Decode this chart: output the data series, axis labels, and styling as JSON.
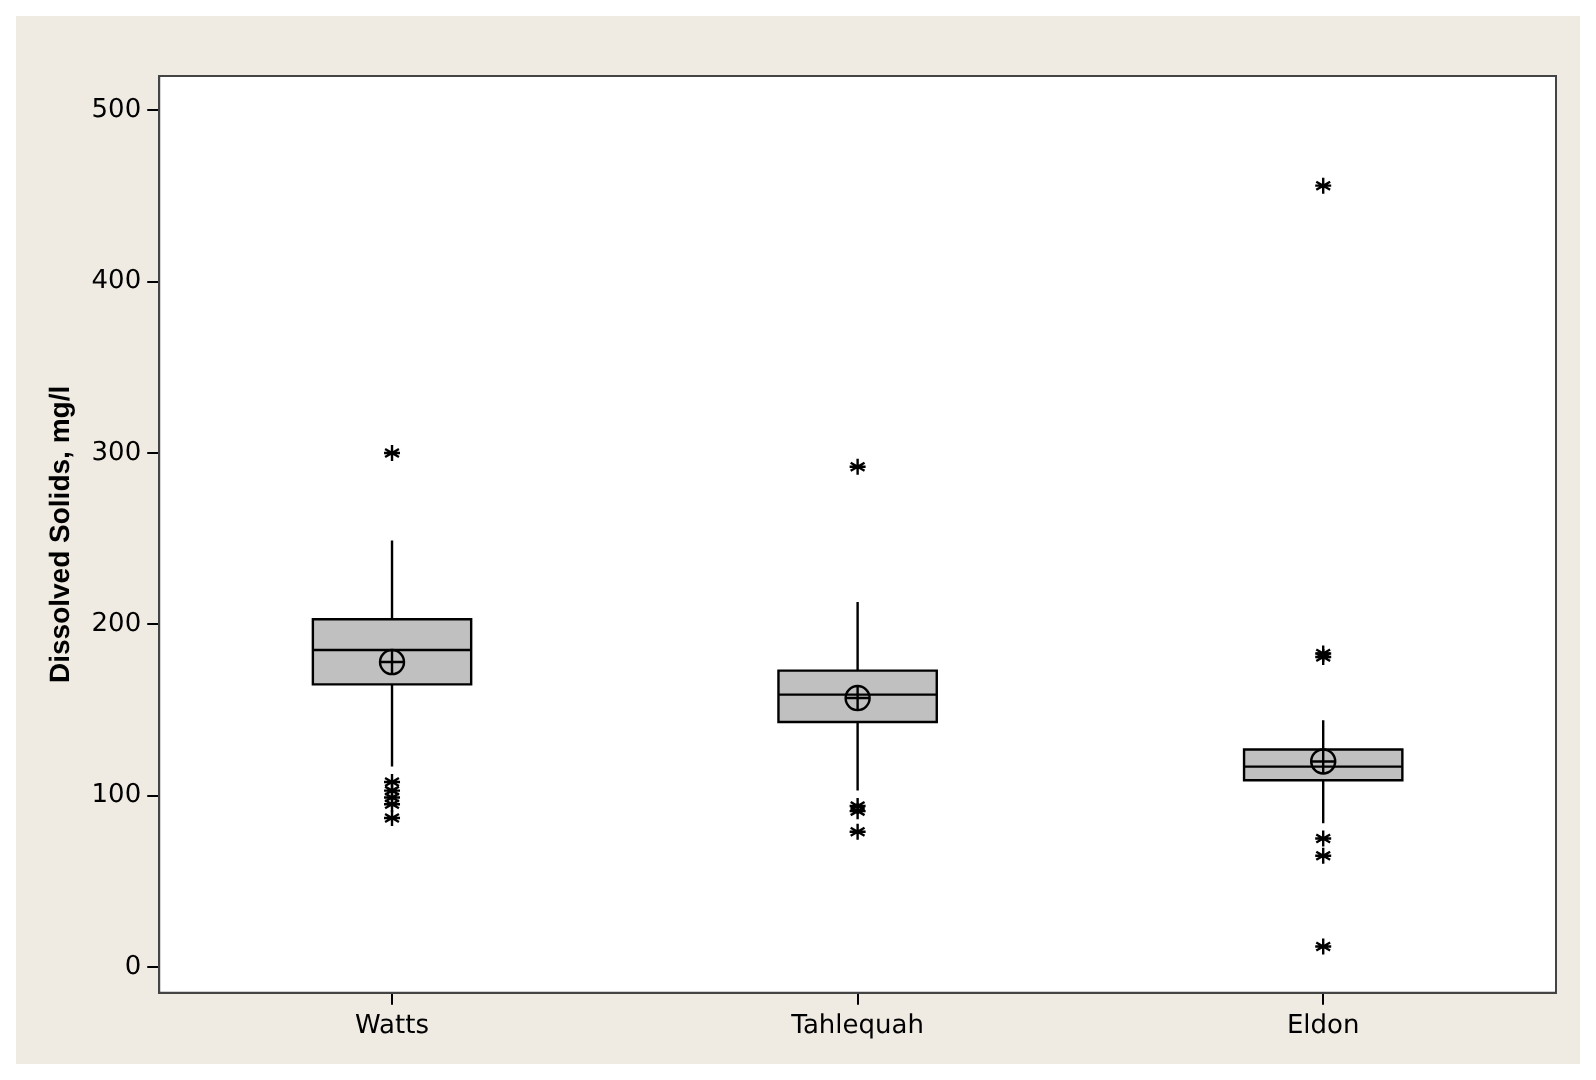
{
  "chart_data": {
    "type": "box",
    "ylabel": "Dissolved Solids, mg/l",
    "categories": [
      "Watts",
      "Tahlequah",
      "Eldon"
    ],
    "color": "#c0c0c0",
    "ylim": [
      -15,
      520
    ],
    "yticks": [
      0,
      100,
      200,
      300,
      400,
      500
    ],
    "grid": false,
    "boxes": [
      {
        "low": 117,
        "q1": 165,
        "median": 185,
        "q3": 203,
        "high": 249,
        "mean": 178,
        "outliers": [
          300,
          108,
          103,
          99,
          95,
          87
        ]
      },
      {
        "low": 103,
        "q1": 143,
        "median": 159,
        "q3": 173,
        "high": 213,
        "mean": 157,
        "outliers": [
          292,
          94,
          91,
          79
        ]
      },
      {
        "low": 84,
        "q1": 109,
        "median": 117,
        "q3": 127,
        "high": 144,
        "mean": 120,
        "outliers": [
          456,
          183,
          181,
          75,
          65,
          12
        ]
      }
    ]
  }
}
